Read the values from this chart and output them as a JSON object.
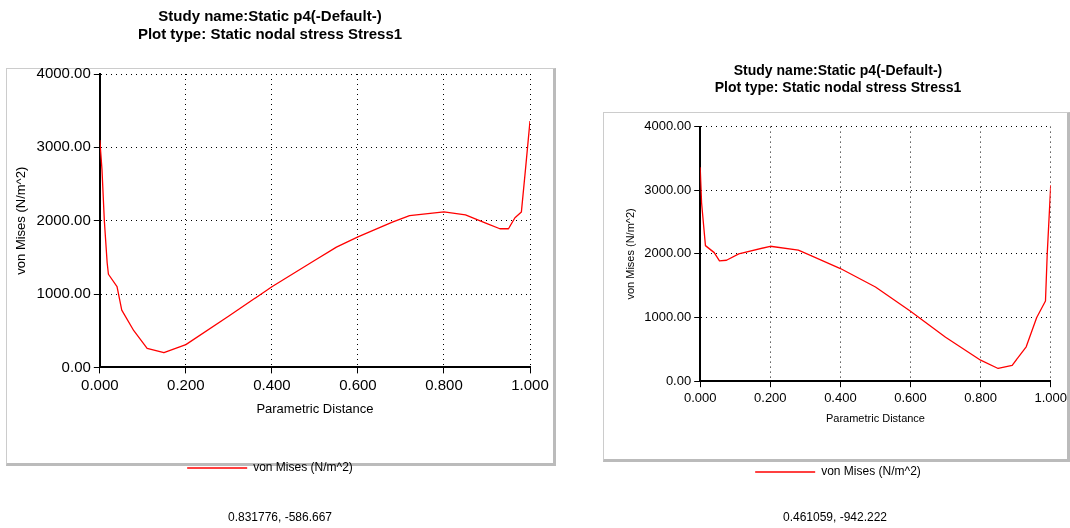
{
  "chart_data": [
    {
      "type": "line",
      "title": "Study name:Static p4(-Default-)",
      "subtitle": "Plot type: Static nodal stress Stress1",
      "xlabel": "Parametric Distance",
      "ylabel": "von Mises (N/m^2)",
      "series": [
        {
          "name": "von Mises (N/m^2)",
          "color": "#ff0000",
          "x": [
            0,
            0.005,
            0.0105,
            0.017,
            0.02,
            0.04,
            0.051,
            0.079,
            0.11,
            0.149,
            0.2,
            0.3,
            0.4,
            0.5,
            0.55,
            0.6,
            0.68,
            0.72,
            0.8,
            0.85,
            0.9,
            0.93,
            0.95,
            0.965,
            0.98,
            0.99,
            1.0
          ],
          "values": [
            3100,
            2700,
            2000,
            1430,
            1270,
            1100,
            780,
            500,
            260,
            200,
            310,
            700,
            1100,
            1460,
            1640,
            1780,
            1980,
            2070,
            2120,
            2080,
            1960,
            1890,
            1890,
            2040,
            2120,
            2730,
            3360
          ]
        }
      ],
      "xlim": [
        0,
        1
      ],
      "ylim": [
        0,
        4000
      ],
      "xticks": [
        {
          "value": 0,
          "label": "0.000"
        },
        {
          "value": 0.2,
          "label": "0.200"
        },
        {
          "value": 0.4,
          "label": "0.400"
        },
        {
          "value": 0.6,
          "label": "0.600"
        },
        {
          "value": 0.8,
          "label": "0.800"
        },
        {
          "value": 1,
          "label": "1.000"
        }
      ],
      "yticks": [
        {
          "value": 0,
          "label": "0.00"
        },
        {
          "value": 1000,
          "label": "1000.00"
        },
        {
          "value": 2000,
          "label": "2000.00"
        },
        {
          "value": 3000,
          "label": "3000.00"
        },
        {
          "value": 4000,
          "label": "4000.00"
        }
      ],
      "grid": true,
      "legend": "bottom",
      "marker": "none",
      "line_style": "solid",
      "annotations": [
        "0.831776, -586.667"
      ]
    },
    {
      "type": "line",
      "title": "Study name:Static p4(-Default-)",
      "subtitle": "Plot type: Static nodal stress Stress1",
      "xlabel": "Parametric Distance",
      "ylabel": "von Mises (N/m^2)",
      "series": [
        {
          "name": "von Mises (N/m^2)",
          "color": "#ff0000",
          "x": [
            0,
            0.004,
            0.015,
            0.04,
            0.055,
            0.075,
            0.11,
            0.2,
            0.28,
            0.4,
            0.5,
            0.6,
            0.7,
            0.8,
            0.85,
            0.89,
            0.93,
            0.96,
            0.985,
            0.99,
            1.0
          ],
          "values": [
            3360,
            2800,
            2130,
            2020,
            1890,
            1900,
            2000,
            2120,
            2060,
            1770,
            1480,
            1100,
            690,
            330,
            200,
            250,
            540,
            1000,
            1260,
            2000,
            3080
          ]
        }
      ],
      "xlim": [
        0,
        1
      ],
      "ylim": [
        0,
        4000
      ],
      "xticks": [
        {
          "value": 0,
          "label": "0.000"
        },
        {
          "value": 0.2,
          "label": "0.200"
        },
        {
          "value": 0.4,
          "label": "0.400"
        },
        {
          "value": 0.6,
          "label": "0.600"
        },
        {
          "value": 0.8,
          "label": "0.800"
        },
        {
          "value": 1,
          "label": "1.000"
        }
      ],
      "yticks": [
        {
          "value": 0,
          "label": "0.00"
        },
        {
          "value": 1000,
          "label": "1000.00"
        },
        {
          "value": 2000,
          "label": "2000.00"
        },
        {
          "value": 3000,
          "label": "3000.00"
        },
        {
          "value": 4000,
          "label": "4000.00"
        }
      ],
      "grid": true,
      "legend": "bottom",
      "marker": "none",
      "line_style": "solid",
      "annotations": [
        "0.461059, -942.222"
      ]
    }
  ]
}
